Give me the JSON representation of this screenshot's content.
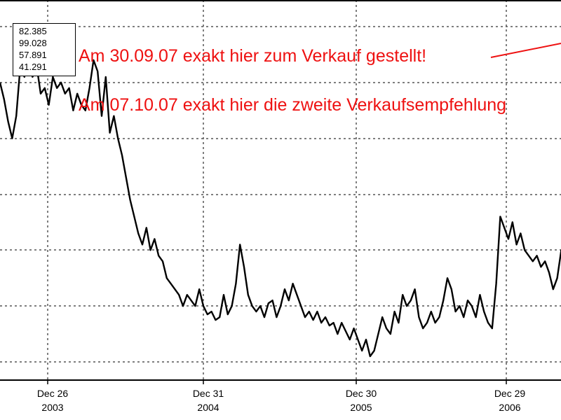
{
  "chart_data": {
    "type": "line",
    "title": "",
    "xlabel": "",
    "ylabel": "",
    "grid": true,
    "x_ticks": [
      {
        "line1": "Dec 26",
        "line2": "2003"
      },
      {
        "line1": "Dec 31",
        "line2": "2004"
      },
      {
        "line1": "Dec 30",
        "line2": "2005"
      },
      {
        "line1": "Dec 29",
        "line2": "2006"
      }
    ],
    "legend_values": [
      "82.385",
      "99.028",
      "57.891",
      "41.291"
    ],
    "series": [
      {
        "color": "#000000",
        "points": [
          [
            0.0,
            70.0
          ],
          [
            0.02,
            67.0
          ],
          [
            0.04,
            63.0
          ],
          [
            0.06,
            60.0
          ],
          [
            0.08,
            64.0
          ],
          [
            0.1,
            73.0
          ],
          [
            0.12,
            71.0
          ],
          [
            0.14,
            76.0
          ],
          [
            0.16,
            71.0
          ],
          [
            0.18,
            73.0
          ],
          [
            0.2,
            68.0
          ],
          [
            0.22,
            69.0
          ],
          [
            0.24,
            66.0
          ],
          [
            0.26,
            71.0
          ],
          [
            0.28,
            69.0
          ],
          [
            0.3,
            70.0
          ],
          [
            0.32,
            68.0
          ],
          [
            0.34,
            69.0
          ],
          [
            0.36,
            65.0
          ],
          [
            0.38,
            68.0
          ],
          [
            0.4,
            66.0
          ],
          [
            0.42,
            65.0
          ],
          [
            0.44,
            69.0
          ],
          [
            0.46,
            74.0
          ],
          [
            0.48,
            72.0
          ],
          [
            0.5,
            64.0
          ],
          [
            0.52,
            71.0
          ],
          [
            0.54,
            61.0
          ],
          [
            0.56,
            64.0
          ],
          [
            0.58,
            60.0
          ],
          [
            0.6,
            57.0
          ],
          [
            0.62,
            53.0
          ],
          [
            0.64,
            49.0
          ],
          [
            0.66,
            46.0
          ],
          [
            0.68,
            43.0
          ],
          [
            0.7,
            41.0
          ],
          [
            0.72,
            44.0
          ],
          [
            0.74,
            40.0
          ],
          [
            0.76,
            42.0
          ],
          [
            0.78,
            39.0
          ],
          [
            0.8,
            38.0
          ],
          [
            0.82,
            35.0
          ],
          [
            0.84,
            34.0
          ],
          [
            0.86,
            33.0
          ],
          [
            0.88,
            32.0
          ],
          [
            0.9,
            30.0
          ],
          [
            0.92,
            32.0
          ],
          [
            0.94,
            31.0
          ],
          [
            0.96,
            30.0
          ],
          [
            0.98,
            33.0
          ],
          [
            1.0,
            30.0
          ],
          [
            1.02,
            28.5
          ],
          [
            1.04,
            29.0
          ],
          [
            1.06,
            27.5
          ],
          [
            1.08,
            28.0
          ],
          [
            1.1,
            32.0
          ],
          [
            1.12,
            28.5
          ],
          [
            1.14,
            30.0
          ],
          [
            1.16,
            34.0
          ],
          [
            1.18,
            41.0
          ],
          [
            1.2,
            37.0
          ],
          [
            1.22,
            32.0
          ],
          [
            1.24,
            30.0
          ],
          [
            1.26,
            29.0
          ],
          [
            1.28,
            30.0
          ],
          [
            1.3,
            28.0
          ],
          [
            1.32,
            30.5
          ],
          [
            1.34,
            31.0
          ],
          [
            1.36,
            28.0
          ],
          [
            1.38,
            30.0
          ],
          [
            1.4,
            33.0
          ],
          [
            1.42,
            31.0
          ],
          [
            1.44,
            34.0
          ],
          [
            1.46,
            32.0
          ],
          [
            1.48,
            30.0
          ],
          [
            1.5,
            28.0
          ],
          [
            1.52,
            29.0
          ],
          [
            1.54,
            27.5
          ],
          [
            1.56,
            29.0
          ],
          [
            1.58,
            27.0
          ],
          [
            1.6,
            28.0
          ],
          [
            1.62,
            26.5
          ],
          [
            1.64,
            27.0
          ],
          [
            1.66,
            25.0
          ],
          [
            1.68,
            27.0
          ],
          [
            1.7,
            25.5
          ],
          [
            1.72,
            24.0
          ],
          [
            1.74,
            26.0
          ],
          [
            1.76,
            24.0
          ],
          [
            1.78,
            22.0
          ],
          [
            1.8,
            24.0
          ],
          [
            1.82,
            21.0
          ],
          [
            1.84,
            22.0
          ],
          [
            1.86,
            25.0
          ],
          [
            1.88,
            28.0
          ],
          [
            1.9,
            26.0
          ],
          [
            1.92,
            25.0
          ],
          [
            1.94,
            29.0
          ],
          [
            1.96,
            27.0
          ],
          [
            1.98,
            32.0
          ],
          [
            2.0,
            30.0
          ],
          [
            2.02,
            31.0
          ],
          [
            2.04,
            33.0
          ],
          [
            2.06,
            28.0
          ],
          [
            2.08,
            26.0
          ],
          [
            2.1,
            27.0
          ],
          [
            2.12,
            29.0
          ],
          [
            2.14,
            27.0
          ],
          [
            2.16,
            28.0
          ],
          [
            2.18,
            31.0
          ],
          [
            2.2,
            35.0
          ],
          [
            2.22,
            33.0
          ],
          [
            2.24,
            29.0
          ],
          [
            2.26,
            30.0
          ],
          [
            2.28,
            28.0
          ],
          [
            2.3,
            31.0
          ],
          [
            2.32,
            30.0
          ],
          [
            2.34,
            28.0
          ],
          [
            2.36,
            32.0
          ],
          [
            2.38,
            29.0
          ],
          [
            2.4,
            27.0
          ],
          [
            2.42,
            26.0
          ],
          [
            2.44,
            34.0
          ],
          [
            2.46,
            46.0
          ],
          [
            2.48,
            44.0
          ],
          [
            2.5,
            42.0
          ],
          [
            2.52,
            45.0
          ],
          [
            2.54,
            41.0
          ],
          [
            2.56,
            43.0
          ],
          [
            2.58,
            40.0
          ],
          [
            2.6,
            39.0
          ],
          [
            2.62,
            38.0
          ],
          [
            2.64,
            39.0
          ],
          [
            2.66,
            37.0
          ],
          [
            2.68,
            38.0
          ],
          [
            2.7,
            36.0
          ],
          [
            2.72,
            33.0
          ],
          [
            2.74,
            35.0
          ],
          [
            2.76,
            40.0
          ],
          [
            2.78,
            38.0
          ]
        ]
      }
    ]
  },
  "annotations": {
    "line1": "Am 30.09.07 exakt hier zum Verkauf gestellt!",
    "line2": "Am 07.10.07 exakt hier die zweite Verkaufsempfehlung"
  }
}
